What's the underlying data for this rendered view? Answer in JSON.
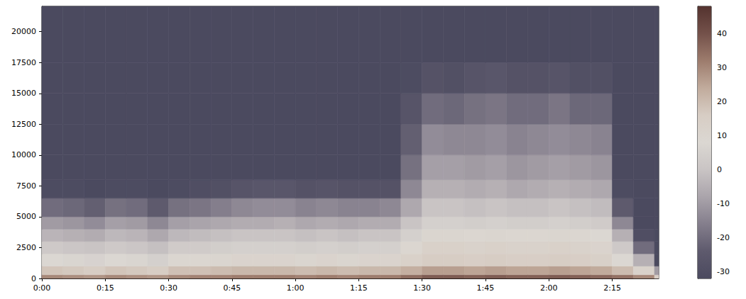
{
  "chart_data": {
    "type": "spectrogram",
    "grid": false,
    "xlim": [
      0,
      146
    ],
    "xticks": [
      {
        "value": 0,
        "label": "0:00"
      },
      {
        "value": 15,
        "label": "0:15"
      },
      {
        "value": 30,
        "label": "0:30"
      },
      {
        "value": 45,
        "label": "0:45"
      },
      {
        "value": 60,
        "label": "1:00"
      },
      {
        "value": 75,
        "label": "1:15"
      },
      {
        "value": 90,
        "label": "1:30"
      },
      {
        "value": 105,
        "label": "1:45"
      },
      {
        "value": 120,
        "label": "2:00"
      },
      {
        "value": 135,
        "label": "2:15"
      }
    ],
    "ylim": [
      0,
      22050
    ],
    "yticks": [
      0,
      2500,
      5000,
      7500,
      10000,
      12500,
      15000,
      17500,
      20000
    ],
    "clim": [
      -32,
      48
    ],
    "cticks": [
      -30,
      -20,
      -10,
      0,
      10,
      20,
      30,
      40
    ],
    "time_bins": [
      0,
      5,
      10,
      15,
      20,
      25,
      30,
      35,
      40,
      45,
      50,
      55,
      60,
      65,
      70,
      75,
      80,
      85,
      90,
      95,
      100,
      105,
      110,
      115,
      120,
      125,
      130,
      135,
      140,
      145,
      146
    ],
    "freq_bins": [
      0,
      300,
      1000,
      2000,
      3000,
      4000,
      5000,
      6500,
      8000,
      10000,
      12500,
      15000,
      17500,
      22050
    ],
    "values": [
      [
        30,
        18,
        8,
        2,
        -4,
        -10,
        -20,
        -31,
        -32,
        -32,
        -32,
        -32,
        -32
      ],
      [
        29,
        17,
        7,
        1,
        -5,
        -11,
        -21,
        -31,
        -32,
        -32,
        -32,
        -32,
        -32
      ],
      [
        28,
        16,
        6,
        0,
        -6,
        -13,
        -23,
        -32,
        -32,
        -32,
        -32,
        -32,
        -32
      ],
      [
        30,
        18,
        8,
        2,
        -3,
        -9,
        -19,
        -31,
        -32,
        -32,
        -32,
        -32,
        -32
      ],
      [
        29,
        17,
        7,
        1,
        -4,
        -10,
        -20,
        -31,
        -32,
        -32,
        -32,
        -32,
        -32
      ],
      [
        28,
        16,
        5,
        -1,
        -7,
        -14,
        -24,
        -32,
        -32,
        -32,
        -32,
        -32,
        -32
      ],
      [
        30,
        19,
        9,
        3,
        -3,
        -9,
        -19,
        -31,
        -32,
        -32,
        -32,
        -32,
        -32
      ],
      [
        31,
        19,
        9,
        3,
        -2,
        -8,
        -18,
        -30,
        -32,
        -32,
        -32,
        -32,
        -32
      ],
      [
        31,
        20,
        10,
        4,
        -1,
        -7,
        -16,
        -29,
        -32,
        -32,
        -32,
        -32,
        -32
      ],
      [
        32,
        21,
        11,
        5,
        0,
        -6,
        -14,
        -27,
        -32,
        -32,
        -32,
        -32,
        -32
      ],
      [
        32,
        21,
        11,
        5,
        0,
        -6,
        -13,
        -26,
        -32,
        -32,
        -32,
        -32,
        -32
      ],
      [
        32,
        21,
        11,
        5,
        0,
        -5,
        -13,
        -26,
        -32,
        -32,
        -32,
        -32,
        -32
      ],
      [
        31,
        20,
        10,
        4,
        -1,
        -7,
        -15,
        -28,
        -32,
        -32,
        -32,
        -32,
        -32
      ],
      [
        32,
        21,
        11,
        5,
        0,
        -6,
        -14,
        -27,
        -32,
        -32,
        -32,
        -32,
        -32
      ],
      [
        31,
        20,
        10,
        4,
        -1,
        -7,
        -15,
        -28,
        -32,
        -32,
        -32,
        -32,
        -32
      ],
      [
        32,
        21,
        11,
        5,
        0,
        -6,
        -15,
        -28,
        -32,
        -32,
        -32,
        -32,
        -32
      ],
      [
        32,
        21,
        11,
        5,
        0,
        -6,
        -14,
        -28,
        -32,
        -32,
        -32,
        -32,
        -32
      ],
      [
        35,
        23,
        13,
        9,
        5,
        0,
        -7,
        -14,
        -19,
        -23,
        -27,
        -31,
        -32
      ],
      [
        38,
        26,
        16,
        13,
        10,
        5,
        0,
        -5,
        -9,
        -13,
        -20,
        -28,
        -32
      ],
      [
        38,
        26,
        16,
        13,
        10,
        5,
        0,
        -5,
        -9,
        -14,
        -21,
        -29,
        -32
      ],
      [
        37,
        25,
        15,
        12,
        9,
        4,
        -1,
        -6,
        -10,
        -14,
        -19,
        -27,
        -32
      ],
      [
        38,
        26,
        16,
        13,
        10,
        5,
        0,
        -5,
        -9,
        -13,
        -18,
        -26,
        -32
      ],
      [
        37,
        25,
        15,
        12,
        9,
        4,
        -1,
        -7,
        -11,
        -15,
        -20,
        -28,
        -32
      ],
      [
        37,
        25,
        15,
        12,
        9,
        4,
        -1,
        -6,
        -10,
        -14,
        -20,
        -28,
        -32
      ],
      [
        38,
        26,
        16,
        13,
        10,
        5,
        0,
        -5,
        -9,
        -13,
        -18,
        -27,
        -32
      ],
      [
        37,
        25,
        15,
        12,
        9,
        4,
        -1,
        -6,
        -10,
        -14,
        -21,
        -29,
        -32
      ],
      [
        36,
        24,
        14,
        11,
        8,
        3,
        -2,
        -7,
        -11,
        -15,
        -21,
        -29,
        -32
      ],
      [
        34,
        20,
        8,
        2,
        -5,
        -14,
        -24,
        -31,
        -32,
        -32,
        -32,
        -32,
        -32
      ],
      [
        30,
        12,
        -5,
        -20,
        -30,
        -32,
        -32,
        -32,
        -32,
        -32,
        -32,
        -32,
        -32
      ],
      [
        15,
        -10,
        -32,
        -32,
        -32,
        -32,
        -32,
        -32,
        -32,
        -32,
        -32,
        -32,
        -32
      ]
    ]
  }
}
